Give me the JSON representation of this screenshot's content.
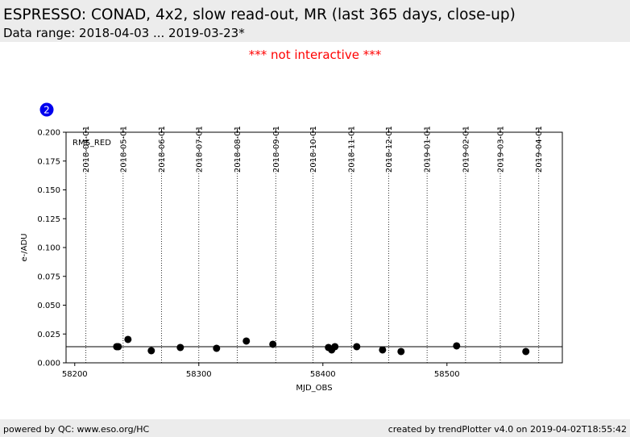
{
  "header": {
    "title": "ESPRESSO: CONAD, 4x2, slow read-out, MR (last 365 days, close-up)",
    "subtitle": "Data range: 2018-04-03 ... 2019-03-23*"
  },
  "notice": "*** not interactive ***",
  "badge": "2",
  "chart_data": {
    "type": "scatter",
    "panel_label": "RMS_RED",
    "xlabel": "MJD_OBS",
    "ylabel": "e-/ADU",
    "x": [
      58233.8,
      58235.1,
      58242.9,
      58261.7,
      58285.1,
      58314.3,
      58338.3,
      58359.7,
      58404.5,
      58407.1,
      58409.7,
      58427.3,
      58448.1,
      58463.0,
      58507.8,
      58563.6
    ],
    "values": [
      0.014,
      0.014,
      0.0203,
      0.0105,
      0.0133,
      0.0126,
      0.0189,
      0.0161,
      0.0133,
      0.0112,
      0.014,
      0.014,
      0.0112,
      0.0098,
      0.0147,
      0.0098
    ],
    "color": "#000000",
    "reference_line": 0.014,
    "xlim": [
      58193,
      58593
    ],
    "ylim": [
      0,
      0.2
    ],
    "xticks": [
      58200,
      58300,
      58400,
      58500
    ],
    "yticks": [
      {
        "value": 0,
        "label": "0.000"
      },
      {
        "value": 0.025,
        "label": "0.025"
      },
      {
        "value": 0.05,
        "label": "0.050"
      },
      {
        "value": 0.075,
        "label": "0.075"
      },
      {
        "value": 0.1,
        "label": "0.100"
      },
      {
        "value": 0.125,
        "label": "0.125"
      },
      {
        "value": 0.15,
        "label": "0.150"
      },
      {
        "value": 0.175,
        "label": "0.175"
      },
      {
        "value": 0.2,
        "label": "0.200"
      }
    ],
    "x2ticks": [
      {
        "value": 58209,
        "label": "2018-04-01"
      },
      {
        "value": 58239,
        "label": "2018-05-01"
      },
      {
        "value": 58270,
        "label": "2018-06-01"
      },
      {
        "value": 58300,
        "label": "2018-07-01"
      },
      {
        "value": 58331,
        "label": "2018-08-01"
      },
      {
        "value": 58362,
        "label": "2018-09-01"
      },
      {
        "value": 58392,
        "label": "2018-10-01"
      },
      {
        "value": 58423,
        "label": "2018-11-01"
      },
      {
        "value": 58453,
        "label": "2018-12-01"
      },
      {
        "value": 58484,
        "label": "2019-01-01"
      },
      {
        "value": 58515,
        "label": "2019-02-01"
      },
      {
        "value": 58543,
        "label": "2019-03-01"
      },
      {
        "value": 58574,
        "label": "2019-04-01"
      }
    ],
    "grid": true
  },
  "footer": {
    "left": "powered by QC: www.eso.org/HC",
    "right": "created by trendPlotter v4.0 on 2019-04-02T18:55:42"
  }
}
